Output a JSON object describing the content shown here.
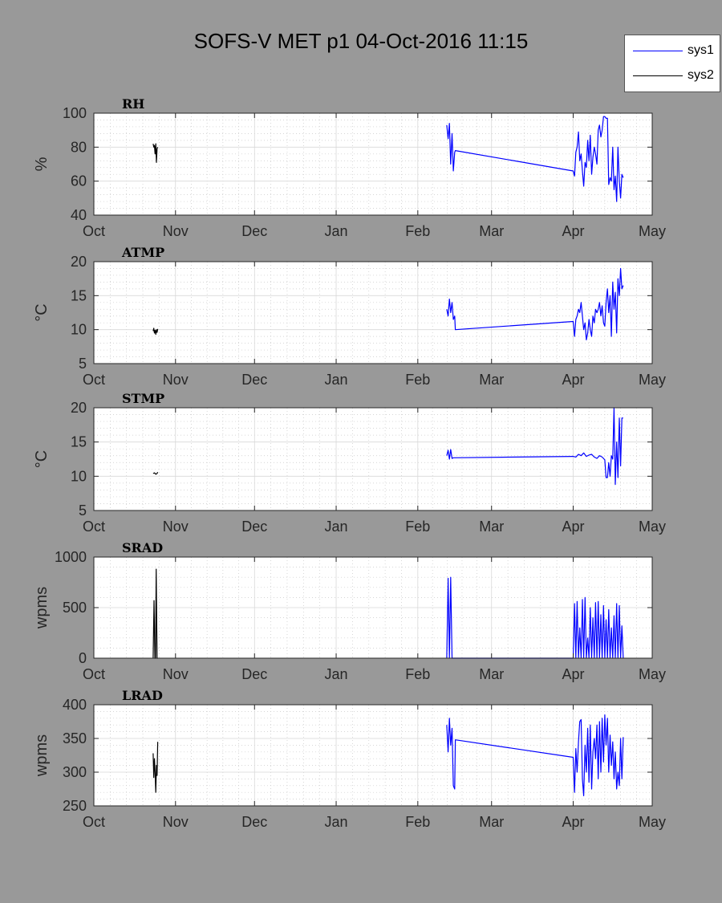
{
  "figure": {
    "title": "SOFS-V MET p1 04-Oct-2016 11:15",
    "background": "#999999"
  },
  "legend": {
    "entries": [
      {
        "label": "sys1",
        "color": "#0000ff"
      },
      {
        "label": "sys2",
        "color": "#000000"
      }
    ]
  },
  "chart_data": [
    {
      "type": "line",
      "title": "RH",
      "ylabel": "%",
      "ylim": [
        40,
        100
      ],
      "yticks": [
        40,
        60,
        80,
        100
      ],
      "xlim": [
        "2016-10-01",
        "2017-05-01"
      ],
      "xticks": [
        "2016-10-01",
        "2016-11-01",
        "2016-12-01",
        "2017-01-01",
        "2017-02-01",
        "2017-03-01",
        "2017-04-01",
        "2017-05-01"
      ],
      "xticklabels": [
        "Oct",
        "Nov",
        "Dec",
        "Jan",
        "Feb",
        "Mar",
        "Apr",
        "May"
      ],
      "grid": true,
      "series": [
        {
          "name": "sys2",
          "color": "#000000",
          "x": [
            "2016-10-23 12:00",
            "2016-10-23 18:00",
            "2016-10-24 00:00",
            "2016-10-24 06:00",
            "2016-10-24 12:00",
            "2016-10-24 18:00",
            "2016-10-25 00:00",
            "2016-10-25 06:00"
          ],
          "y": [
            82,
            80,
            81,
            76,
            82,
            71,
            79,
            80
          ]
        },
        {
          "name": "sys1",
          "color": "#0000ff",
          "x": [
            "2017-02-12 00:00",
            "2017-02-12 12:00",
            "2017-02-13 00:00",
            "2017-02-13 12:00",
            "2017-02-14 00:00",
            "2017-02-14 12:00",
            "2017-02-15 00:00",
            "2017-02-15 06:00",
            "2017-04-01 00:00",
            "2017-04-01 12:00",
            "2017-04-02 00:00",
            "2017-04-02 12:00",
            "2017-04-03 00:00",
            "2017-04-03 12:00",
            "2017-04-04 00:00",
            "2017-04-04 12:00",
            "2017-04-05 00:00",
            "2017-04-05 12:00",
            "2017-04-06 00:00",
            "2017-04-06 12:00",
            "2017-04-07 00:00",
            "2017-04-07 12:00",
            "2017-04-08 00:00",
            "2017-04-08 12:00",
            "2017-04-09 00:00",
            "2017-04-09 12:00",
            "2017-04-10 00:00",
            "2017-04-10 12:00",
            "2017-04-11 00:00",
            "2017-04-11 12:00",
            "2017-04-12 00:00",
            "2017-04-12 12:00",
            "2017-04-13 00:00",
            "2017-04-13 12:00",
            "2017-04-14 00:00",
            "2017-04-14 12:00",
            "2017-04-15 00:00",
            "2017-04-15 12:00",
            "2017-04-16 00:00",
            "2017-04-16 12:00",
            "2017-04-17 00:00",
            "2017-04-17 12:00",
            "2017-04-18 00:00",
            "2017-04-18 12:00",
            "2017-04-19 00:00",
            "2017-04-19 12:00",
            "2017-04-20 00:00"
          ],
          "y": [
            93,
            85,
            94,
            70,
            88,
            66,
            77,
            78,
            66,
            63,
            77,
            80,
            89,
            72,
            76,
            66,
            57,
            71,
            68,
            84,
            72,
            87,
            64,
            74,
            80,
            76,
            70,
            90,
            93,
            86,
            90,
            98,
            98,
            97,
            97,
            58,
            62,
            60,
            80,
            55,
            63,
            48,
            80,
            60,
            50,
            64,
            62
          ]
        }
      ]
    },
    {
      "type": "line",
      "title": "ATMP",
      "ylabel": "°C",
      "ylim": [
        5,
        20
      ],
      "yticks": [
        5,
        10,
        15,
        20
      ],
      "xlim": [
        "2016-10-01",
        "2017-05-01"
      ],
      "xticks": [
        "2016-10-01",
        "2016-11-01",
        "2016-12-01",
        "2017-01-01",
        "2017-02-01",
        "2017-03-01",
        "2017-04-01",
        "2017-05-01"
      ],
      "xticklabels": [
        "Oct",
        "Nov",
        "Dec",
        "Jan",
        "Feb",
        "Mar",
        "Apr",
        "May"
      ],
      "grid": true,
      "series": [
        {
          "name": "sys2",
          "color": "#000000",
          "x": [
            "2016-10-23 12:00",
            "2016-10-23 18:00",
            "2016-10-24 00:00",
            "2016-10-24 06:00",
            "2016-10-24 12:00",
            "2016-10-24 18:00",
            "2016-10-25 00:00",
            "2016-10-25 06:00"
          ],
          "y": [
            9.8,
            10.2,
            9.5,
            9.9,
            9.3,
            10.0,
            9.6,
            10.1
          ]
        },
        {
          "name": "sys1",
          "color": "#0000ff",
          "x": [
            "2017-02-12 00:00",
            "2017-02-12 12:00",
            "2017-02-13 00:00",
            "2017-02-13 12:00",
            "2017-02-14 00:00",
            "2017-02-14 12:00",
            "2017-02-15 00:00",
            "2017-02-15 06:00",
            "2017-04-01 00:00",
            "2017-04-01 12:00",
            "2017-04-02 00:00",
            "2017-04-02 12:00",
            "2017-04-03 00:00",
            "2017-04-03 12:00",
            "2017-04-04 00:00",
            "2017-04-04 12:00",
            "2017-04-05 00:00",
            "2017-04-05 12:00",
            "2017-04-06 00:00",
            "2017-04-06 12:00",
            "2017-04-07 00:00",
            "2017-04-07 12:00",
            "2017-04-08 00:00",
            "2017-04-08 12:00",
            "2017-04-09 00:00",
            "2017-04-09 12:00",
            "2017-04-10 00:00",
            "2017-04-10 12:00",
            "2017-04-11 00:00",
            "2017-04-11 12:00",
            "2017-04-12 00:00",
            "2017-04-12 12:00",
            "2017-04-13 00:00",
            "2017-04-13 12:00",
            "2017-04-14 00:00",
            "2017-04-14 12:00",
            "2017-04-15 00:00",
            "2017-04-15 12:00",
            "2017-04-16 00:00",
            "2017-04-16 12:00",
            "2017-04-17 00:00",
            "2017-04-17 12:00",
            "2017-04-18 00:00",
            "2017-04-18 12:00",
            "2017-04-19 00:00",
            "2017-04-19 12:00",
            "2017-04-20 00:00"
          ],
          "y": [
            13.0,
            12.0,
            14.5,
            12.5,
            14.0,
            11.5,
            12.0,
            10.0,
            11.2,
            9.0,
            11.5,
            12.0,
            13.0,
            12.5,
            14.0,
            12.0,
            10.0,
            11.0,
            8.5,
            9.5,
            11.5,
            10.0,
            9.0,
            12.0,
            11.0,
            13.0,
            12.5,
            13.0,
            14.0,
            12.0,
            13.5,
            11.0,
            10.5,
            14.0,
            16.0,
            12.5,
            15.0,
            9.0,
            17.0,
            13.0,
            15.5,
            9.5,
            17.5,
            15.0,
            19.0,
            16.0,
            16.5
          ]
        }
      ]
    },
    {
      "type": "line",
      "title": "STMP",
      "ylabel": "°C",
      "ylim": [
        5,
        20
      ],
      "yticks": [
        5,
        10,
        15,
        20
      ],
      "xlim": [
        "2016-10-01",
        "2017-05-01"
      ],
      "xticks": [
        "2016-10-01",
        "2016-11-01",
        "2016-12-01",
        "2017-01-01",
        "2017-02-01",
        "2017-03-01",
        "2017-04-01",
        "2017-05-01"
      ],
      "xticklabels": [
        "Oct",
        "Nov",
        "Dec",
        "Jan",
        "Feb",
        "Mar",
        "Apr",
        "May"
      ],
      "grid": true,
      "series": [
        {
          "name": "sys2",
          "color": "#000000",
          "x": [
            "2016-10-23 12:00",
            "2016-10-24 00:00",
            "2016-10-24 12:00",
            "2016-10-25 00:00",
            "2016-10-25 06:00"
          ],
          "y": [
            10.4,
            10.5,
            10.3,
            10.4,
            10.6
          ]
        },
        {
          "name": "sys1",
          "color": "#0000ff",
          "x": [
            "2017-02-12 00:00",
            "2017-02-12 12:00",
            "2017-02-13 00:00",
            "2017-02-13 12:00",
            "2017-02-14 00:00",
            "2017-02-14 12:00",
            "2017-02-15 00:00",
            "2017-04-01 00:00",
            "2017-04-02 00:00",
            "2017-04-03 00:00",
            "2017-04-04 00:00",
            "2017-04-05 00:00",
            "2017-04-06 00:00",
            "2017-04-07 00:00",
            "2017-04-08 00:00",
            "2017-04-09 00:00",
            "2017-04-10 00:00",
            "2017-04-11 00:00",
            "2017-04-12 00:00",
            "2017-04-13 00:00",
            "2017-04-13 12:00",
            "2017-04-14 00:00",
            "2017-04-14 12:00",
            "2017-04-15 00:00",
            "2017-04-15 12:00",
            "2017-04-16 00:00",
            "2017-04-16 12:00",
            "2017-04-17 00:00",
            "2017-04-17 12:00",
            "2017-04-18 00:00",
            "2017-04-18 12:00",
            "2017-04-19 00:00",
            "2017-04-19 12:00",
            "2017-04-20 00:00"
          ],
          "y": [
            13.0,
            13.8,
            12.5,
            13.9,
            12.6,
            12.7,
            12.7,
            12.9,
            12.8,
            13.2,
            13.0,
            13.4,
            12.9,
            13.1,
            13.2,
            12.8,
            12.6,
            13.0,
            12.8,
            12.4,
            9.8,
            9.8,
            12.0,
            10.0,
            13.0,
            12.5,
            20.0,
            8.8,
            15.0,
            9.8,
            18.5,
            11.5,
            18.5,
            18.5
          ]
        }
      ]
    },
    {
      "type": "line",
      "title": "SRAD",
      "ylabel": "wpms",
      "ylim": [
        0,
        1000
      ],
      "yticks": [
        0,
        500,
        1000
      ],
      "xlim": [
        "2016-10-01",
        "2017-05-01"
      ],
      "xticks": [
        "2016-10-01",
        "2016-11-01",
        "2016-12-01",
        "2017-01-01",
        "2017-02-01",
        "2017-03-01",
        "2017-04-01",
        "2017-05-01"
      ],
      "xticklabels": [
        "Oct",
        "Nov",
        "Dec",
        "Jan",
        "Feb",
        "Mar",
        "Apr",
        "May"
      ],
      "grid": true,
      "series": [
        {
          "name": "sys2",
          "color": "#000000",
          "x": [
            "2016-10-23 12:00",
            "2016-10-23 20:00",
            "2016-10-24 04:00",
            "2016-10-24 10:00",
            "2016-10-24 16:00",
            "2016-10-25 00:00",
            "2016-10-25 06:00"
          ],
          "y": [
            0,
            570,
            0,
            0,
            880,
            0,
            0
          ]
        },
        {
          "name": "sys1",
          "color": "#0000ff",
          "x": [
            "2017-02-12 00:00",
            "2017-02-12 12:00",
            "2017-02-13 00:00",
            "2017-02-13 12:00",
            "2017-02-14 00:00",
            "2017-02-14 12:00",
            "2017-02-15 00:00",
            "2017-04-01 00:00",
            "2017-04-01 12:00",
            "2017-04-02 00:00",
            "2017-04-02 12:00",
            "2017-04-03 00:00",
            "2017-04-03 12:00",
            "2017-04-04 00:00",
            "2017-04-04 12:00",
            "2017-04-05 00:00",
            "2017-04-05 12:00",
            "2017-04-06 00:00",
            "2017-04-06 12:00",
            "2017-04-07 00:00",
            "2017-04-07 12:00",
            "2017-04-08 00:00",
            "2017-04-08 12:00",
            "2017-04-09 00:00",
            "2017-04-09 12:00",
            "2017-04-10 00:00",
            "2017-04-10 12:00",
            "2017-04-11 00:00",
            "2017-04-11 12:00",
            "2017-04-12 00:00",
            "2017-04-12 12:00",
            "2017-04-13 00:00",
            "2017-04-13 12:00",
            "2017-04-14 00:00",
            "2017-04-14 12:00",
            "2017-04-15 00:00",
            "2017-04-15 12:00",
            "2017-04-16 00:00",
            "2017-04-16 12:00",
            "2017-04-17 00:00",
            "2017-04-17 12:00",
            "2017-04-18 00:00",
            "2017-04-18 12:00",
            "2017-04-19 00:00",
            "2017-04-19 12:00",
            "2017-04-20 00:00"
          ],
          "y": [
            0,
            790,
            0,
            800,
            0,
            0,
            0,
            0,
            540,
            0,
            560,
            0,
            300,
            0,
            580,
            0,
            600,
            0,
            200,
            0,
            500,
            0,
            400,
            0,
            550,
            0,
            560,
            0,
            430,
            0,
            520,
            0,
            380,
            0,
            480,
            0,
            300,
            0,
            420,
            0,
            540,
            0,
            520,
            0,
            320,
            0
          ]
        }
      ]
    },
    {
      "type": "line",
      "title": "LRAD",
      "ylabel": "wpms",
      "ylim": [
        250,
        400
      ],
      "yticks": [
        250,
        300,
        350,
        400
      ],
      "xlim": [
        "2016-10-01",
        "2017-05-01"
      ],
      "xticks": [
        "2016-10-01",
        "2016-11-01",
        "2016-12-01",
        "2017-01-01",
        "2017-02-01",
        "2017-03-01",
        "2017-04-01",
        "2017-05-01"
      ],
      "xticklabels": [
        "Oct",
        "Nov",
        "Dec",
        "Jan",
        "Feb",
        "Mar",
        "Apr",
        "May"
      ],
      "grid": true,
      "series": [
        {
          "name": "sys2",
          "color": "#000000",
          "x": [
            "2016-10-23 12:00",
            "2016-10-23 18:00",
            "2016-10-24 00:00",
            "2016-10-24 06:00",
            "2016-10-24 12:00",
            "2016-10-24 18:00",
            "2016-10-25 00:00",
            "2016-10-25 06:00"
          ],
          "y": [
            328,
            292,
            320,
            300,
            270,
            310,
            295,
            345
          ]
        },
        {
          "name": "sys1",
          "color": "#0000ff",
          "x": [
            "2017-02-12 00:00",
            "2017-02-12 12:00",
            "2017-02-13 00:00",
            "2017-02-13 12:00",
            "2017-02-14 00:00",
            "2017-02-14 12:00",
            "2017-02-15 00:00",
            "2017-02-15 06:00",
            "2017-04-01 00:00",
            "2017-04-01 12:00",
            "2017-04-02 00:00",
            "2017-04-02 12:00",
            "2017-04-03 00:00",
            "2017-04-03 12:00",
            "2017-04-04 00:00",
            "2017-04-04 12:00",
            "2017-04-05 00:00",
            "2017-04-05 12:00",
            "2017-04-06 00:00",
            "2017-04-06 12:00",
            "2017-04-07 00:00",
            "2017-04-07 12:00",
            "2017-04-08 00:00",
            "2017-04-08 12:00",
            "2017-04-09 00:00",
            "2017-04-09 12:00",
            "2017-04-10 00:00",
            "2017-04-10 12:00",
            "2017-04-11 00:00",
            "2017-04-11 12:00",
            "2017-04-12 00:00",
            "2017-04-12 12:00",
            "2017-04-13 00:00",
            "2017-04-13 12:00",
            "2017-04-14 00:00",
            "2017-04-14 12:00",
            "2017-04-15 00:00",
            "2017-04-15 12:00",
            "2017-04-16 00:00",
            "2017-04-16 12:00",
            "2017-04-17 00:00",
            "2017-04-17 12:00",
            "2017-04-18 00:00",
            "2017-04-18 12:00",
            "2017-04-19 00:00",
            "2017-04-19 12:00",
            "2017-04-20 00:00"
          ],
          "y": [
            370,
            330,
            380,
            340,
            365,
            280,
            275,
            348,
            322,
            270,
            335,
            300,
            345,
            375,
            378,
            290,
            265,
            340,
            300,
            365,
            285,
            370,
            275,
            330,
            350,
            320,
            370,
            290,
            375,
            300,
            380,
            315,
            385,
            340,
            380,
            300,
            355,
            310,
            345,
            290,
            330,
            275,
            300,
            280,
            350,
            290,
            352
          ]
        }
      ]
    }
  ]
}
